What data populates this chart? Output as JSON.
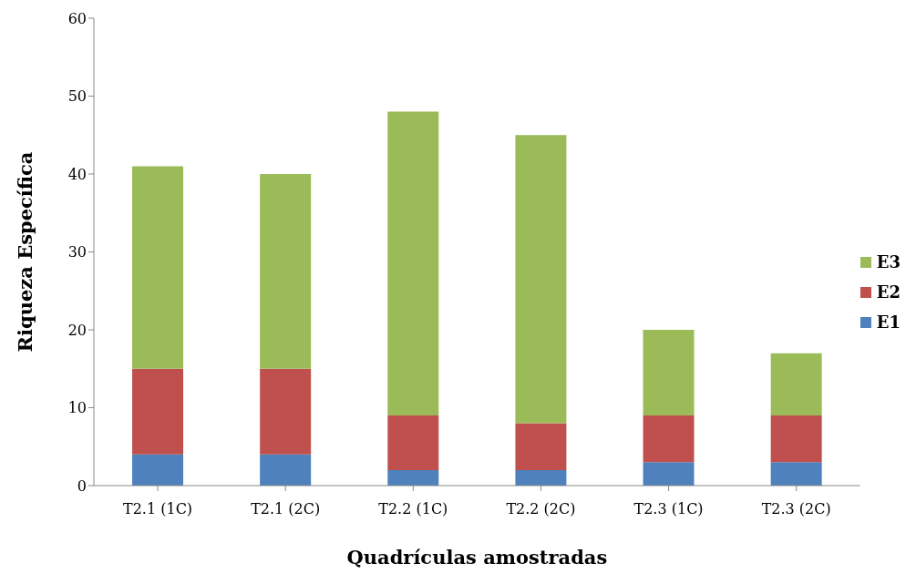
{
  "chart_data": {
    "type": "bar",
    "stacked": true,
    "xlabel": "Quadrículas amostradas",
    "ylabel": "Riqueza Específica",
    "categories": [
      "T2.1 (1C)",
      "T2.1 (2C)",
      "T2.2 (1C)",
      "T2.2 (2C)",
      "T2.3 (1C)",
      "T2.3 (2C)"
    ],
    "series": [
      {
        "name": "E1",
        "color": "#4f81bd",
        "values": [
          4,
          4,
          2,
          2,
          3,
          3
        ]
      },
      {
        "name": "E2",
        "color": "#c0504d",
        "values": [
          11,
          11,
          7,
          6,
          6,
          6
        ]
      },
      {
        "name": "E3",
        "color": "#9bbb59",
        "values": [
          26,
          25,
          39,
          37,
          11,
          8
        ]
      }
    ],
    "ylim": [
      0,
      60
    ],
    "yticks": [
      0,
      10,
      20,
      30,
      40,
      50,
      60
    ],
    "grid": false,
    "legend": "right"
  }
}
